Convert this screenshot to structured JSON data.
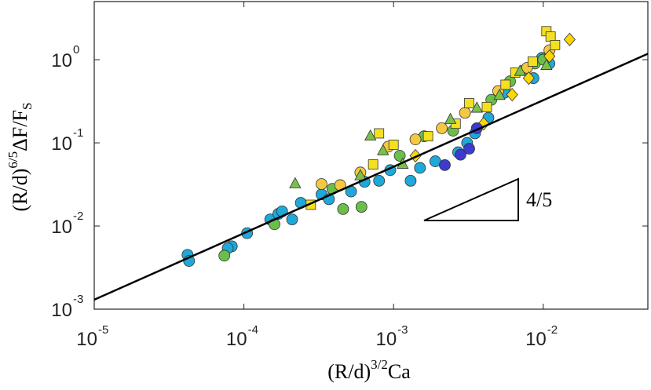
{
  "chart_data": {
    "type": "scatter",
    "xscale": "log",
    "yscale": "log",
    "x_label": [
      "(R/d)",
      "3/2",
      "Ca"
    ],
    "y_label": [
      "(R/d)",
      "6/5",
      "ΔF/F",
      "S"
    ],
    "annotation": "4/5",
    "xlim": [
      1e-05,
      0.05
    ],
    "ylim": [
      0.001,
      5
    ],
    "xticks": [
      {
        "value": 1e-05,
        "label": "10",
        "exponent": "-5"
      },
      {
        "value": 0.0001,
        "label": "10",
        "exponent": "-4"
      },
      {
        "value": 0.001,
        "label": "10",
        "exponent": "-3"
      },
      {
        "value": 0.01,
        "label": "10",
        "exponent": "-2"
      }
    ],
    "yticks": [
      {
        "value": 0.001,
        "label": "10",
        "exponent": "-3"
      },
      {
        "value": 0.01,
        "label": "10",
        "exponent": "-2"
      },
      {
        "value": 0.1,
        "label": "10",
        "exponent": "-1"
      },
      {
        "value": 1,
        "label": "10",
        "exponent": "0"
      }
    ],
    "fit_line": {
      "color": "#000000",
      "x": [
        1e-05,
        0.05
      ],
      "values": [
        0.0013,
        1.18
      ]
    },
    "series": [
      {
        "color": "#1fa8d8",
        "marker": "circle",
        "x": [
          4.2e-05,
          4.3e-05,
          8.3e-05,
          7.8e-05,
          0.000105,
          0.00015,
          0.00017,
          0.00018,
          0.00021,
          0.00024,
          0.00033,
          0.00037,
          0.00052,
          0.00064,
          0.0008,
          0.00095,
          0.0013,
          0.0015,
          0.0019,
          0.0027,
          0.0031,
          0.0035,
          0.0043,
          0.0055,
          0.0075,
          0.0098,
          0.011,
          0.0086
        ],
        "values": [
          0.0045,
          0.0038,
          0.0057,
          0.0054,
          0.0082,
          0.012,
          0.014,
          0.015,
          0.012,
          0.019,
          0.024,
          0.021,
          0.026,
          0.034,
          0.035,
          0.047,
          0.035,
          0.05,
          0.06,
          0.077,
          0.1,
          0.13,
          0.2,
          0.4,
          0.75,
          1.05,
          0.9,
          0.6
        ]
      },
      {
        "color": "#6abf4b",
        "marker": "circle",
        "x": [
          7.4e-05,
          0.00016,
          0.00039,
          0.00046,
          0.00061,
          0.0011,
          0.0016,
          0.0025,
          0.0045,
          0.006,
          0.0088,
          0.01
        ],
        "values": [
          0.0044,
          0.0105,
          0.028,
          0.016,
          0.017,
          0.07,
          0.12,
          0.14,
          0.33,
          0.55,
          0.9,
          1.0
        ]
      },
      {
        "color": "#f5c842",
        "marker": "circle",
        "x": [
          0.00033,
          0.00044,
          0.0006,
          0.00092,
          0.0014,
          0.0021,
          0.003,
          0.005,
          0.0078,
          0.011
        ],
        "values": [
          0.032,
          0.031,
          0.044,
          0.09,
          0.11,
          0.15,
          0.23,
          0.42,
          0.8,
          1.3
        ]
      },
      {
        "color": "#f5e020",
        "marker": "square",
        "x": [
          0.00028,
          0.00073,
          0.0008,
          0.001,
          0.0017,
          0.0026,
          0.0032,
          0.0042,
          0.0056,
          0.0065,
          0.0085,
          0.0105,
          0.0112,
          0.012
        ],
        "values": [
          0.018,
          0.055,
          0.13,
          0.095,
          0.12,
          0.17,
          0.3,
          0.27,
          0.5,
          0.7,
          0.95,
          2.2,
          1.9,
          1.5
        ]
      },
      {
        "color": "#7cc04a",
        "marker": "triangle",
        "x": [
          0.00022,
          0.0006,
          0.0007,
          0.00085,
          0.00115,
          0.0024,
          0.0036,
          0.0051,
          0.007,
          0.0105
        ],
        "values": [
          0.032,
          0.04,
          0.12,
          0.08,
          0.055,
          0.19,
          0.26,
          0.37,
          0.72,
          0.85
        ]
      },
      {
        "color": "#ffd700",
        "marker": "diamond",
        "x": [
          0.0014,
          0.004,
          0.0062,
          0.008,
          0.011,
          0.015
        ],
        "values": [
          0.07,
          0.17,
          0.38,
          0.6,
          1.1,
          1.75
        ]
      },
      {
        "color": "#3c3ccc",
        "marker": "circle",
        "x": [
          0.0022,
          0.0028,
          0.0032,
          0.0036
        ],
        "values": [
          0.054,
          0.072,
          0.085,
          0.15
        ]
      }
    ]
  }
}
